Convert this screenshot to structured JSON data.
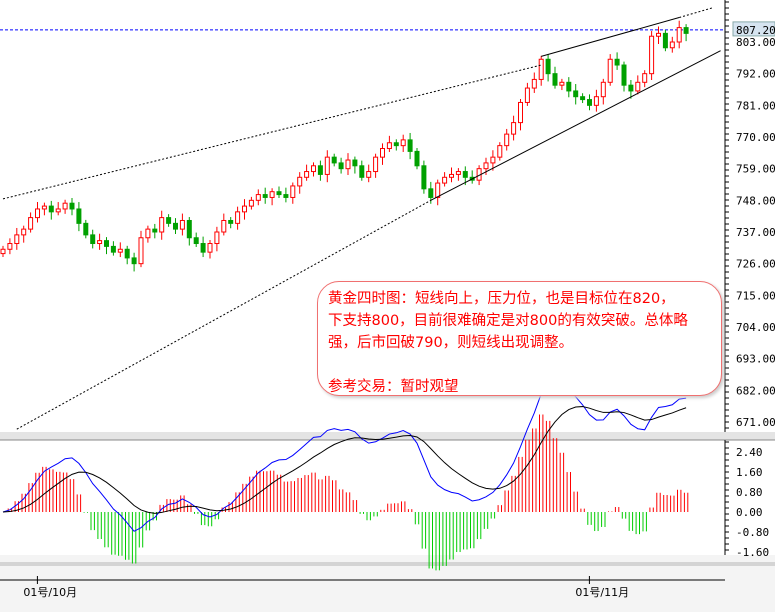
{
  "chart_data": {
    "type": "candlestick",
    "price_axis": {
      "ticks": [
        803,
        792,
        781,
        770,
        759,
        748,
        737,
        726,
        715,
        704,
        693,
        682,
        671
      ],
      "tick_labels": [
        "803.00",
        "792.00",
        "781.00",
        "770.00",
        "759.00",
        "748.00",
        "737.00",
        "726.00",
        "715.00",
        "704.00",
        "693.00",
        "682.00",
        "671.00"
      ],
      "ylim": [
        671,
        803
      ]
    },
    "current_price": {
      "value": 807.2,
      "label": "807.20",
      "color": "#0000ff"
    },
    "close": [
      731,
      733,
      736,
      738,
      742,
      745,
      746,
      744,
      745,
      747,
      745,
      740,
      736,
      733,
      734,
      732,
      730,
      731,
      728,
      726,
      735,
      738,
      737,
      742,
      740,
      738,
      741,
      735,
      733,
      730,
      733,
      737,
      741,
      740,
      744,
      746,
      748,
      750,
      749,
      751,
      750,
      749,
      753,
      756,
      758,
      760,
      757,
      763,
      761,
      759,
      762,
      760,
      756,
      758,
      763,
      766,
      768,
      767,
      769,
      765,
      760,
      752,
      749,
      754,
      756,
      757,
      758,
      756,
      755,
      759,
      761,
      763,
      767,
      771,
      775,
      782,
      787,
      790,
      797,
      792,
      788,
      789,
      786,
      784,
      783,
      781,
      784,
      789,
      797,
      795,
      788,
      786,
      789,
      792,
      805,
      806,
      801,
      803,
      808,
      806
    ],
    "up_color": "#ff0000",
    "down_color": "#00a000",
    "trendlines": [
      {
        "style": "dotted",
        "from": [
          0,
          748.5
        ],
        "to": [
          78,
          795
        ]
      },
      {
        "style": "solid",
        "from": [
          78,
          798
        ],
        "to": [
          98,
          811.5
        ]
      },
      {
        "style": "dotted",
        "from": [
          98,
          811.5
        ],
        "to": [
          103,
          815
        ]
      },
      {
        "style": "dotted",
        "from": [
          2,
          668.5
        ],
        "to": [
          62,
          748
        ]
      },
      {
        "style": "solid",
        "from": [
          62,
          748
        ],
        "to": [
          104,
          800
        ]
      }
    ],
    "macd": {
      "ticks": [
        2.4,
        1.6,
        0.8,
        0,
        -0.8,
        -1.6
      ],
      "tick_labels": [
        "2.40",
        "1.60",
        "0.80",
        "0.00",
        "-0.80",
        "-1.60"
      ],
      "ylim": [
        -2.4,
        3.0
      ],
      "line_color": "#0000ff",
      "signal_color": "#000000"
    },
    "time_axis": {
      "labels": [
        {
          "index": 6,
          "text": "01号/10月"
        },
        {
          "index": 86,
          "text": "01号/11月"
        }
      ]
    }
  },
  "note": {
    "lines": [
      "黄金四时图：短线向上，压力位，也是目标位在820，",
      "下支持800，目前很难确定是对800的有效突破。总体略",
      "强，后市回破790，则短线出现调整。",
      "",
      "参考交易：暂时观望"
    ]
  }
}
